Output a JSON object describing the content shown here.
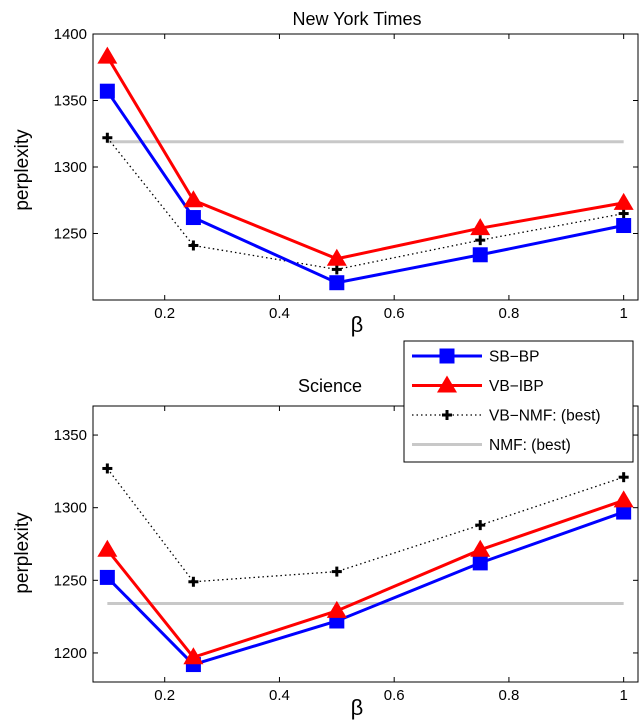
{
  "chart_data": [
    {
      "type": "line",
      "title": "New York Times",
      "xlabel": "β",
      "ylabel": "perplexity",
      "xlim": [
        0.075,
        1.025
      ],
      "ylim": [
        1200,
        1400
      ],
      "xticks": [
        0.2,
        0.4,
        0.6,
        0.8,
        1
      ],
      "xtick_labels": [
        "0.2",
        "0.4",
        "0.6",
        "0.8",
        "1"
      ],
      "yticks": [
        1250,
        1300,
        1350,
        1400
      ],
      "ytick_labels": [
        "1250",
        "1300",
        "1350",
        "1400"
      ],
      "x": [
        0.1,
        0.25,
        0.5,
        0.75,
        1.0
      ],
      "series": [
        {
          "name": "SB−BP",
          "values": [
            1357,
            1262,
            1213,
            1234,
            1256
          ],
          "color": "#0000ff",
          "marker": "square"
        },
        {
          "name": "VB−IBP",
          "values": [
            1383,
            1275,
            1231,
            1254,
            1273
          ],
          "color": "#ff0000",
          "marker": "triangle"
        },
        {
          "name": "VB−NMF: (best)",
          "values": [
            1322,
            1241,
            1223,
            1245,
            1265
          ],
          "color": "#000000",
          "marker": "plus",
          "dash": "dotted"
        },
        {
          "name": "NMF: (best)",
          "values": [
            1319,
            1319,
            1319,
            1319,
            1319
          ],
          "color": "#c8c8c8",
          "marker": "none"
        }
      ],
      "grid": false
    },
    {
      "type": "line",
      "title": "Science",
      "xlabel": "β",
      "ylabel": "perplexity",
      "xlim": [
        0.075,
        1.025
      ],
      "ylim": [
        1180,
        1370
      ],
      "xticks": [
        0.2,
        0.4,
        0.6,
        0.8,
        1
      ],
      "xtick_labels": [
        "0.2",
        "0.4",
        "0.6",
        "0.8",
        "1"
      ],
      "yticks": [
        1200,
        1250,
        1300,
        1350
      ],
      "ytick_labels": [
        "1200",
        "1250",
        "1300",
        "1350"
      ],
      "x": [
        0.1,
        0.25,
        0.5,
        0.75,
        1.0
      ],
      "series": [
        {
          "name": "SB−BP",
          "values": [
            1252,
            1192,
            1222,
            1262,
            1297
          ],
          "color": "#0000ff",
          "marker": "square"
        },
        {
          "name": "VB−IBP",
          "values": [
            1271,
            1197,
            1229,
            1271,
            1305
          ],
          "color": "#ff0000",
          "marker": "triangle"
        },
        {
          "name": "VB−NMF: (best)",
          "values": [
            1327,
            1249,
            1256,
            1288,
            1321
          ],
          "color": "#000000",
          "marker": "plus",
          "dash": "dotted"
        },
        {
          "name": "NMF: (best)",
          "values": [
            1234,
            1234,
            1234,
            1234,
            1234
          ],
          "color": "#c8c8c8",
          "marker": "none"
        }
      ],
      "grid": false,
      "legend": "top-right"
    }
  ],
  "legend": {
    "entries": [
      {
        "label": "SB−BP",
        "color": "#0000ff",
        "marker": "square",
        "dash": "solid"
      },
      {
        "label": "VB−IBP",
        "color": "#ff0000",
        "marker": "triangle",
        "dash": "solid"
      },
      {
        "label": "VB−NMF: (best)",
        "color": "#000000",
        "marker": "plus",
        "dash": "dotted"
      },
      {
        "label": "NMF: (best)",
        "color": "#c8c8c8",
        "marker": "none",
        "dash": "solid"
      }
    ]
  }
}
